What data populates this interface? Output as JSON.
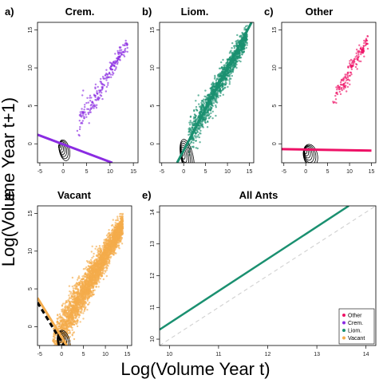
{
  "chart_data": {
    "xlabel": "Log(Volume Year t)",
    "ylabel": "Log(Volume Year t+1)",
    "panels": [
      {
        "id": "a",
        "letter": "a)",
        "title": "Crem.",
        "type": "scatter",
        "color": "#8a2be2",
        "xlim": [
          -5.5,
          16
        ],
        "ylim": [
          -2.5,
          16
        ],
        "xticks": [
          -5,
          0,
          5,
          10,
          15
        ],
        "yticks": [
          0,
          5,
          10,
          15
        ],
        "cloud": {
          "n": 230,
          "xmin": 3,
          "xmax": 13.8,
          "slope": 1.0,
          "intercept": -0.6,
          "sd": 1.0,
          "seed": 11
        },
        "fit": {
          "color": "#8a2be2",
          "x1": -5.5,
          "y1": 1.2,
          "x2": 10.5,
          "y2": -2.5
        },
        "contours": {
          "cx": -1.0,
          "cy": -0.3,
          "rx": 1.1,
          "ry": 1.4
        }
      },
      {
        "id": "b",
        "letter": "b)",
        "title": "Liom.",
        "type": "scatter",
        "color": "#1a9070",
        "xlim": [
          -5.5,
          16
        ],
        "ylim": [
          -2.5,
          16
        ],
        "xticks": [
          -5,
          0,
          5,
          10,
          15
        ],
        "yticks": [
          0,
          5,
          10,
          15
        ],
        "cloud": {
          "n": 1400,
          "xmin": 1,
          "xmax": 14.5,
          "slope": 1.0,
          "intercept": -0.3,
          "sd": 1.2,
          "seed": 23
        },
        "fit": {
          "color": "#1a9070",
          "x1": -1.5,
          "y1": -2.5,
          "x2": 15.5,
          "y2": 16
        },
        "contours": {
          "cx": -0.5,
          "cy": -1.2,
          "rx": 1.4,
          "ry": 2.4
        }
      },
      {
        "id": "c",
        "letter": "c)",
        "title": "Other",
        "type": "scatter",
        "color": "#ee1166",
        "xlim": [
          -5.5,
          16
        ],
        "ylim": [
          -2.5,
          16
        ],
        "xticks": [
          -5,
          0,
          5,
          10,
          15
        ],
        "yticks": [
          0,
          5,
          10,
          15
        ],
        "cloud": {
          "n": 170,
          "xmin": 6,
          "xmax": 14.2,
          "slope": 1.0,
          "intercept": -0.6,
          "sd": 0.9,
          "seed": 37
        },
        "fit": {
          "color": "#ee1166",
          "x1": -5.5,
          "y1": -0.7,
          "x2": 15,
          "y2": -0.9
        },
        "contours": {
          "cx": -0.2,
          "cy": -1.0,
          "rx": 1.6,
          "ry": 1.5
        }
      },
      {
        "id": "d",
        "letter": "d)",
        "title": "Vacant",
        "type": "scatter",
        "color": "#f4ac4c",
        "xlim": [
          -5.5,
          16
        ],
        "ylim": [
          -2.5,
          16
        ],
        "xticks": [
          -5,
          0,
          5,
          10,
          15
        ],
        "yticks": [
          0,
          5,
          10,
          15
        ],
        "cloud": {
          "n": 3200,
          "xmin": -2,
          "xmax": 14,
          "slope": 1.0,
          "intercept": -0.5,
          "sd": 1.5,
          "seed": 51
        },
        "fit": {
          "color": "#f4ac4c",
          "x1": -5.5,
          "y1": 3.8,
          "x2": 1.2,
          "y2": -2.5
        },
        "fit_dashed": {
          "color": "#000000",
          "x1": -5.5,
          "y1": 3.2,
          "x2": 0.5,
          "y2": -2.5
        },
        "contours": {
          "cx": -0.8,
          "cy": -1.5,
          "rx": 1.4,
          "ry": 1.6
        }
      },
      {
        "id": "e",
        "letter": "e)",
        "title": "All Ants",
        "type": "line",
        "xlim": [
          9.8,
          14.2
        ],
        "ylim": [
          9.8,
          14.2
        ],
        "xticks": [
          10,
          11,
          12,
          13,
          14
        ],
        "yticks": [
          10,
          11,
          12,
          13,
          14
        ],
        "lines": [
          {
            "name": "Liom.",
            "color": "#1a9070",
            "x": [
              9.8,
              13.65
            ],
            "y": [
              10.3,
              14.2
            ]
          },
          {
            "name": "",
            "color": "#cccccc",
            "dashed": true,
            "x": [
              9.8,
              14.2
            ],
            "y": [
              9.8,
              14.2
            ]
          }
        ],
        "legend": {
          "position": "bottom-right",
          "entries": [
            {
              "label": "Other",
              "color": "#ee1166"
            },
            {
              "label": "Crem.",
              "color": "#8a2be2"
            },
            {
              "label": "Liom.",
              "color": "#1a9070"
            },
            {
              "label": "Vacant",
              "color": "#f4ac4c"
            }
          ]
        }
      }
    ]
  }
}
